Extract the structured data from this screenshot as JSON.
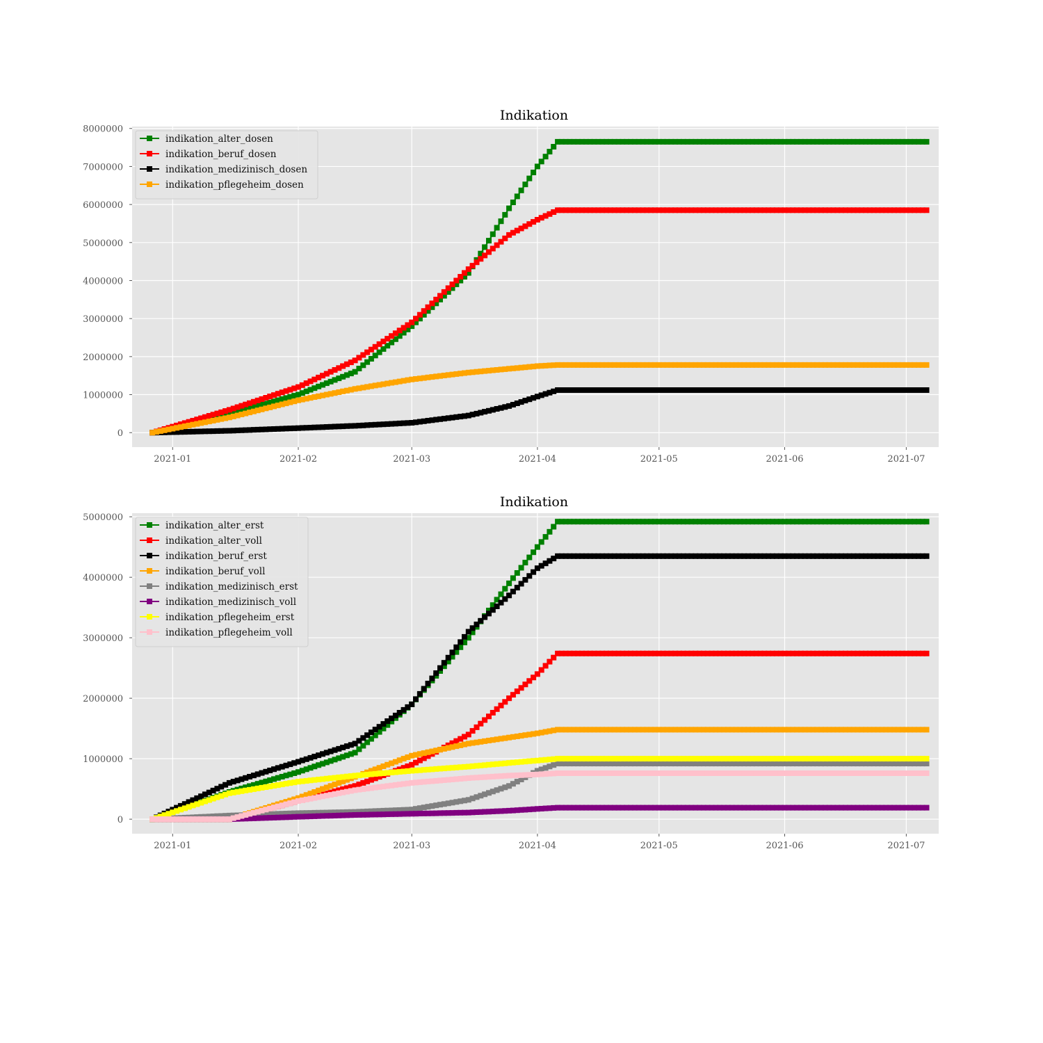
{
  "chart_data": [
    {
      "type": "line",
      "title": "Indikation",
      "xlabel": "",
      "ylabel": "",
      "x_range": [
        "2020-12-22",
        "2021-07-09"
      ],
      "ylim": [
        -380000,
        8050000
      ],
      "x_ticks": [
        "2021-01",
        "2021-02",
        "2021-03",
        "2021-04",
        "2021-05",
        "2021-06",
        "2021-07"
      ],
      "y_ticks": [
        "0",
        "1000000",
        "2000000",
        "3000000",
        "4000000",
        "5000000",
        "6000000",
        "7000000",
        "8000000"
      ],
      "y_tick_values": [
        0,
        1000000,
        2000000,
        3000000,
        4000000,
        5000000,
        6000000,
        7000000,
        8000000
      ],
      "grid": true,
      "legend_position": "top-left",
      "marker": "square",
      "series": [
        {
          "name": "indikation_alter_dosen",
          "color": "#008000",
          "points": [
            [
              "2020-12-27",
              0
            ],
            [
              "2021-01-15",
              500000
            ],
            [
              "2021-02-01",
              1000000
            ],
            [
              "2021-02-15",
              1600000
            ],
            [
              "2021-03-01",
              2800000
            ],
            [
              "2021-03-15",
              4200000
            ],
            [
              "2021-03-25",
              5900000
            ],
            [
              "2021-04-01",
              7000000
            ],
            [
              "2021-04-06",
              7650000
            ],
            [
              "2021-07-06",
              7650000
            ]
          ]
        },
        {
          "name": "indikation_beruf_dosen",
          "color": "#ff0000",
          "points": [
            [
              "2020-12-27",
              0
            ],
            [
              "2021-01-15",
              600000
            ],
            [
              "2021-02-01",
              1200000
            ],
            [
              "2021-02-15",
              1900000
            ],
            [
              "2021-03-01",
              2900000
            ],
            [
              "2021-03-15",
              4300000
            ],
            [
              "2021-03-25",
              5200000
            ],
            [
              "2021-04-01",
              5600000
            ],
            [
              "2021-04-06",
              5850000
            ],
            [
              "2021-07-06",
              5850000
            ]
          ]
        },
        {
          "name": "indikation_medizinisch_dosen",
          "color": "#000000",
          "points": [
            [
              "2020-12-27",
              0
            ],
            [
              "2021-01-15",
              50000
            ],
            [
              "2021-02-01",
              120000
            ],
            [
              "2021-02-15",
              180000
            ],
            [
              "2021-03-01",
              260000
            ],
            [
              "2021-03-15",
              450000
            ],
            [
              "2021-03-25",
              700000
            ],
            [
              "2021-04-01",
              950000
            ],
            [
              "2021-04-06",
              1120000
            ],
            [
              "2021-07-06",
              1120000
            ]
          ]
        },
        {
          "name": "indikation_pflegeheim_dosen",
          "color": "#ffa500",
          "points": [
            [
              "2020-12-27",
              0
            ],
            [
              "2021-01-15",
              400000
            ],
            [
              "2021-02-01",
              850000
            ],
            [
              "2021-02-15",
              1150000
            ],
            [
              "2021-03-01",
              1400000
            ],
            [
              "2021-03-15",
              1580000
            ],
            [
              "2021-03-25",
              1680000
            ],
            [
              "2021-04-01",
              1750000
            ],
            [
              "2021-04-06",
              1780000
            ],
            [
              "2021-07-06",
              1780000
            ]
          ]
        }
      ]
    },
    {
      "type": "line",
      "title": "Indikation",
      "xlabel": "",
      "ylabel": "",
      "x_range": [
        "2020-12-22",
        "2021-07-09"
      ],
      "ylim": [
        -240000,
        5060000
      ],
      "x_ticks": [
        "2021-01",
        "2021-02",
        "2021-03",
        "2021-04",
        "2021-05",
        "2021-06",
        "2021-07"
      ],
      "y_ticks": [
        "0",
        "1000000",
        "2000000",
        "3000000",
        "4000000",
        "5000000"
      ],
      "y_tick_values": [
        0,
        1000000,
        2000000,
        3000000,
        4000000,
        5000000
      ],
      "grid": true,
      "legend_position": "top-left",
      "marker": "square",
      "series": [
        {
          "name": "indikation_alter_erst",
          "color": "#008000",
          "points": [
            [
              "2020-12-27",
              0
            ],
            [
              "2021-01-15",
              450000
            ],
            [
              "2021-02-01",
              780000
            ],
            [
              "2021-02-15",
              1100000
            ],
            [
              "2021-03-01",
              1900000
            ],
            [
              "2021-03-15",
              3000000
            ],
            [
              "2021-03-25",
              3900000
            ],
            [
              "2021-04-01",
              4500000
            ],
            [
              "2021-04-06",
              4920000
            ],
            [
              "2021-07-06",
              4920000
            ]
          ]
        },
        {
          "name": "indikation_alter_voll",
          "color": "#ff0000",
          "points": [
            [
              "2020-12-27",
              0
            ],
            [
              "2021-01-15",
              0
            ],
            [
              "2021-02-01",
              300000
            ],
            [
              "2021-02-15",
              550000
            ],
            [
              "2021-03-01",
              900000
            ],
            [
              "2021-03-15",
              1400000
            ],
            [
              "2021-03-25",
              2000000
            ],
            [
              "2021-04-01",
              2400000
            ],
            [
              "2021-04-06",
              2740000
            ],
            [
              "2021-07-06",
              2740000
            ]
          ]
        },
        {
          "name": "indikation_beruf_erst",
          "color": "#000000",
          "points": [
            [
              "2020-12-27",
              0
            ],
            [
              "2021-01-15",
              600000
            ],
            [
              "2021-02-01",
              950000
            ],
            [
              "2021-02-15",
              1250000
            ],
            [
              "2021-03-01",
              1900000
            ],
            [
              "2021-03-15",
              3100000
            ],
            [
              "2021-03-25",
              3700000
            ],
            [
              "2021-04-01",
              4150000
            ],
            [
              "2021-04-06",
              4350000
            ],
            [
              "2021-07-06",
              4350000
            ]
          ]
        },
        {
          "name": "indikation_beruf_voll",
          "color": "#ffa500",
          "points": [
            [
              "2020-12-27",
              0
            ],
            [
              "2021-01-15",
              0
            ],
            [
              "2021-02-01",
              350000
            ],
            [
              "2021-02-15",
              700000
            ],
            [
              "2021-03-01",
              1050000
            ],
            [
              "2021-03-15",
              1250000
            ],
            [
              "2021-03-25",
              1350000
            ],
            [
              "2021-04-01",
              1420000
            ],
            [
              "2021-04-06",
              1480000
            ],
            [
              "2021-07-06",
              1480000
            ]
          ]
        },
        {
          "name": "indikation_medizinisch_erst",
          "color": "#808080",
          "points": [
            [
              "2020-12-27",
              0
            ],
            [
              "2021-01-15",
              60000
            ],
            [
              "2021-02-01",
              100000
            ],
            [
              "2021-02-15",
              120000
            ],
            [
              "2021-03-01",
              160000
            ],
            [
              "2021-03-15",
              320000
            ],
            [
              "2021-03-25",
              550000
            ],
            [
              "2021-04-01",
              800000
            ],
            [
              "2021-04-06",
              920000
            ],
            [
              "2021-07-06",
              920000
            ]
          ]
        },
        {
          "name": "indikation_medizinisch_voll",
          "color": "#800080",
          "points": [
            [
              "2020-12-27",
              0
            ],
            [
              "2021-01-15",
              0
            ],
            [
              "2021-02-01",
              40000
            ],
            [
              "2021-02-15",
              70000
            ],
            [
              "2021-03-01",
              90000
            ],
            [
              "2021-03-15",
              110000
            ],
            [
              "2021-03-25",
              140000
            ],
            [
              "2021-04-01",
              170000
            ],
            [
              "2021-04-06",
              190000
            ],
            [
              "2021-07-06",
              190000
            ]
          ]
        },
        {
          "name": "indikation_pflegeheim_erst",
          "color": "#ffff00",
          "points": [
            [
              "2020-12-27",
              0
            ],
            [
              "2021-01-15",
              430000
            ],
            [
              "2021-02-01",
              620000
            ],
            [
              "2021-02-15",
              720000
            ],
            [
              "2021-03-01",
              800000
            ],
            [
              "2021-03-15",
              870000
            ],
            [
              "2021-03-25",
              930000
            ],
            [
              "2021-04-01",
              970000
            ],
            [
              "2021-04-06",
              1000000
            ],
            [
              "2021-07-06",
              1000000
            ]
          ]
        },
        {
          "name": "indikation_pflegeheim_voll",
          "color": "#ffc0cb",
          "points": [
            [
              "2020-12-27",
              0
            ],
            [
              "2021-01-15",
              0
            ],
            [
              "2021-02-01",
              300000
            ],
            [
              "2021-02-15",
              480000
            ],
            [
              "2021-03-01",
              600000
            ],
            [
              "2021-03-15",
              680000
            ],
            [
              "2021-03-25",
              720000
            ],
            [
              "2021-04-01",
              740000
            ],
            [
              "2021-04-06",
              760000
            ],
            [
              "2021-07-06",
              760000
            ]
          ]
        }
      ]
    }
  ]
}
